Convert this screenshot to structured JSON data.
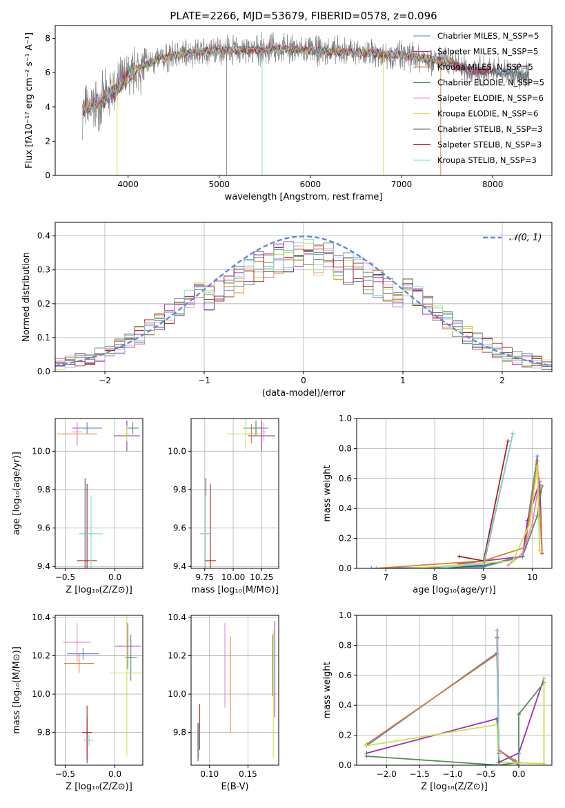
{
  "figure": {
    "title": "PLATE=2266, MJD=53679, FIBERID=0578, z=0.096"
  },
  "colors": {
    "Chabrier MILES": "#5b7fd6",
    "Salpeter MILES": "#9a2fb5",
    "Kroupa MILES": "#e07a2c",
    "Chabrier ELODIE": "#5a8a5a",
    "Salpeter ELODIE": "#ee82c8",
    "Kroupa ELODIE": "#c8e44a",
    "Chabrier STELIB": "#555555",
    "Salpeter STELIB": "#b01c1c",
    "Kroupa STELIB": "#7fd6d6",
    "data": "#7f7f7f",
    "gauss": "#5b8ad6"
  },
  "chart_data": [
    {
      "id": "spectrum",
      "type": "line",
      "xlabel": "wavelength [Angstrom, rest frame]",
      "ylabel": "Flux [fλ10⁻¹⁷ erg cm⁻² s⁻¹ A⁻¹]",
      "xlim": [
        3200,
        8650
      ],
      "ylim": [
        0,
        8.75
      ],
      "xticks": [
        4000,
        5000,
        6000,
        7000,
        8000
      ],
      "yticks": [
        0,
        2,
        4,
        6,
        8
      ],
      "grid": false,
      "legend_position": "right",
      "legend": [
        "Chabrier MILES, N_SSP=5",
        "Salpeter MILES, N_SSP=5",
        "Kroupa MILES, N_SSP=5",
        "Chabrier ELODIE, N_SSP=5",
        "Salpeter ELODIE, N_SSP=6",
        "Kroupa ELODIE, N_SSP=6",
        "Chabrier STELIB, N_SSP=3",
        "Salpeter STELIB, N_SSP=3",
        "Kroupa STELIB, N_SSP=3"
      ],
      "continuum": {
        "x": [
          3500,
          3600,
          3700,
          3800,
          3900,
          4000,
          4100,
          4300,
          4500,
          4700,
          5000,
          5300,
          5600,
          6000,
          6400,
          6800,
          7000,
          7200,
          7400,
          7600,
          7800,
          8000,
          8200,
          8400
        ],
        "y": [
          3.8,
          4.0,
          4.3,
          4.8,
          5.2,
          5.8,
          6.2,
          6.7,
          7.0,
          7.2,
          7.3,
          7.3,
          7.4,
          7.3,
          7.2,
          7.1,
          7.0,
          6.9,
          6.7,
          6.4,
          6.1,
          6.1,
          6.0,
          5.8
        ]
      }
    },
    {
      "id": "residuals",
      "type": "bar",
      "xlabel": "(data-model)/error",
      "ylabel": "Normed distribution",
      "xlim": [
        -2.5,
        2.5
      ],
      "ylim": [
        0,
        0.44
      ],
      "xticks": [
        -2,
        -1,
        0,
        1,
        2
      ],
      "yticks": [
        0.0,
        0.1,
        0.2,
        0.3,
        0.4
      ],
      "grid": true,
      "legend": [
        "𝒩(0, 1)"
      ],
      "legend_position": "upper-right",
      "bin_width": 0.1
    },
    {
      "id": "age_vs_Z",
      "type": "scatter",
      "xlabel": "Z [log₁₀(Z/Z⊙)]",
      "ylabel": "age  [log₁₀(age/yr)]",
      "xlim": [
        -0.6,
        0.28
      ],
      "ylim": [
        9.39,
        10.17
      ],
      "xticks": [
        -0.5,
        0.0
      ],
      "yticks": [
        9.4,
        9.6,
        9.8,
        10.0
      ],
      "grid": true,
      "points": [
        {
          "model": "Chabrier MILES",
          "x": -0.28,
          "y": 10.12,
          "xerr": 0.15,
          "yerr": 0.03
        },
        {
          "model": "Salpeter MILES",
          "x": 0.12,
          "y": 10.08,
          "xerr": 0.13,
          "yerr": 0.08
        },
        {
          "model": "Kroupa MILES",
          "x": -0.38,
          "y": 10.09,
          "xerr": 0.2,
          "yerr": 0.06
        },
        {
          "model": "Chabrier ELODIE",
          "x": 0.18,
          "y": 10.12,
          "xerr": 0.06,
          "yerr": 0.03
        },
        {
          "model": "Salpeter ELODIE",
          "x": -0.38,
          "y": 10.1,
          "xerr": 0.05,
          "yerr": 0.05
        },
        {
          "model": "Kroupa ELODIE",
          "x": 0.12,
          "y": 10.09,
          "xerr": 0.03,
          "yerr": 0.04
        },
        {
          "model": "Chabrier STELIB",
          "x": -0.3,
          "y": 9.57,
          "xerr": 0.05,
          "yerr": 0.29
        },
        {
          "model": "Salpeter STELIB",
          "x": -0.28,
          "y": 9.43,
          "xerr": 0.1,
          "yerr": 0.4
        },
        {
          "model": "Kroupa STELIB",
          "x": -0.24,
          "y": 9.57,
          "xerr": 0.12,
          "yerr": 0.2
        }
      ]
    },
    {
      "id": "age_vs_mass",
      "type": "scatter",
      "xlabel": "mass [log₁₀(M/M⊙)]",
      "ylabel": "",
      "xlim": [
        9.63,
        10.4
      ],
      "ylim": [
        9.39,
        10.17
      ],
      "xticks": [
        9.75,
        10.0,
        10.25
      ],
      "yticks": [
        9.4,
        9.6,
        9.8,
        10.0
      ],
      "grid": true,
      "points": [
        {
          "model": "Chabrier MILES",
          "x": 10.2,
          "y": 10.12,
          "xerr": 0.11,
          "yerr": 0.03
        },
        {
          "model": "Salpeter MILES",
          "x": 10.25,
          "y": 10.08,
          "xerr": 0.12,
          "yerr": 0.08
        },
        {
          "model": "Kroupa MILES",
          "x": 10.16,
          "y": 10.09,
          "xerr": 0.06,
          "yerr": 0.05
        },
        {
          "model": "Chabrier ELODIE",
          "x": 10.2,
          "y": 10.12,
          "xerr": 0.04,
          "yerr": 0.04
        },
        {
          "model": "Salpeter ELODIE",
          "x": 10.27,
          "y": 10.1,
          "xerr": 0.02,
          "yerr": 0.05
        },
        {
          "model": "Kroupa ELODIE",
          "x": 10.11,
          "y": 10.09,
          "xerr": 0.17,
          "yerr": 0.08
        },
        {
          "model": "Chabrier STELIB",
          "x": 9.76,
          "y": 9.57,
          "xerr": 0.05,
          "yerr": 0.29
        },
        {
          "model": "Salpeter STELIB",
          "x": 9.8,
          "y": 9.43,
          "xerr": 0.05,
          "yerr": 0.4
        },
        {
          "model": "Kroupa STELIB",
          "x": 9.76,
          "y": 9.57,
          "xerr": 0.05,
          "yerr": 0.2
        }
      ]
    },
    {
      "id": "weight_vs_age",
      "type": "line",
      "xlabel": "age  [log₁₀(age/yr)]",
      "ylabel": "mass weight",
      "xlim": [
        6.4,
        10.4
      ],
      "ylim": [
        0,
        1.0
      ],
      "xticks": [
        7,
        8,
        9,
        10
      ],
      "yticks": [
        0.0,
        0.2,
        0.4,
        0.6,
        0.8,
        1.0
      ],
      "grid": true,
      "series": [
        {
          "model": "Chabrier MILES",
          "x": [
            6.7,
            9.0,
            9.8,
            10.1,
            10.15
          ],
          "y": [
            0.0,
            0.01,
            0.08,
            0.75,
            0.12
          ]
        },
        {
          "model": "Salpeter MILES",
          "x": [
            8.5,
            9.8,
            9.9,
            10.15,
            10.2
          ],
          "y": [
            0.03,
            0.08,
            0.32,
            0.58,
            0.1
          ]
        },
        {
          "model": "Kroupa MILES",
          "x": [
            6.8,
            9.0,
            9.85,
            10.1,
            10.2
          ],
          "y": [
            0.0,
            0.05,
            0.14,
            0.72,
            0.1
          ]
        },
        {
          "model": "Chabrier ELODIE",
          "x": [
            9.0,
            9.8,
            10.1,
            10.2
          ],
          "y": [
            0.02,
            0.08,
            0.35,
            0.55
          ]
        },
        {
          "model": "Salpeter ELODIE",
          "x": [
            9.5,
            9.8,
            10.0,
            10.15
          ],
          "y": [
            0.02,
            0.1,
            0.3,
            0.6
          ]
        },
        {
          "model": "Kroupa ELODIE",
          "x": [
            7.5,
            9.6,
            9.95,
            10.1,
            10.15
          ],
          "y": [
            0.0,
            0.05,
            0.3,
            0.68,
            0.12
          ]
        },
        {
          "model": "Chabrier STELIB",
          "x": [
            8.0,
            9.0,
            9.6
          ],
          "y": [
            0.0,
            0.02,
            0.9
          ]
        },
        {
          "model": "Salpeter STELIB",
          "x": [
            8.5,
            9.0,
            9.5
          ],
          "y": [
            0.08,
            0.05,
            0.85
          ]
        },
        {
          "model": "Kroupa STELIB",
          "x": [
            8.0,
            9.0,
            9.6
          ],
          "y": [
            0.0,
            0.03,
            0.9
          ]
        }
      ]
    },
    {
      "id": "mass_vs_Z",
      "type": "scatter",
      "xlabel": "Z [log₁₀(Z/Z⊙)]",
      "ylabel": "mass [log₁₀(M/M⊙)]",
      "xlim": [
        -0.6,
        0.28
      ],
      "ylim": [
        9.63,
        10.41
      ],
      "xticks": [
        -0.5,
        0.0
      ],
      "yticks": [
        9.8,
        10.0,
        10.2,
        10.4
      ],
      "grid": true,
      "points": [
        {
          "model": "Chabrier MILES",
          "x": -0.32,
          "y": 10.21,
          "xerr": 0.16,
          "yerr": 0.03
        },
        {
          "model": "Salpeter MILES",
          "x": 0.13,
          "y": 10.25,
          "xerr": 0.13,
          "yerr": 0.12
        },
        {
          "model": "Kroupa MILES",
          "x": -0.36,
          "y": 10.16,
          "xerr": 0.15,
          "yerr": 0.05
        },
        {
          "model": "Chabrier ELODIE",
          "x": 0.16,
          "y": 10.19,
          "xerr": 0.06,
          "yerr": 0.12
        },
        {
          "model": "Salpeter ELODIE",
          "x": -0.38,
          "y": 10.27,
          "xerr": 0.14,
          "yerr": 0.1
        },
        {
          "model": "Kroupa ELODIE",
          "x": 0.12,
          "y": 10.11,
          "xerr": 0.17,
          "yerr": 0.43
        },
        {
          "model": "Chabrier STELIB",
          "x": -0.28,
          "y": 9.76,
          "xerr": 0.03,
          "yerr": 0.12
        },
        {
          "model": "Salpeter STELIB",
          "x": -0.28,
          "y": 9.8,
          "xerr": 0.05,
          "yerr": 0.14
        },
        {
          "model": "Kroupa STELIB",
          "x": -0.26,
          "y": 9.76,
          "xerr": 0.05,
          "yerr": 0.03
        }
      ]
    },
    {
      "id": "mass_vs_ebv",
      "type": "scatter",
      "xlabel": "E(B-V)",
      "ylabel": "",
      "xlim": [
        0.076,
        0.19
      ],
      "ylim": [
        9.63,
        10.41
      ],
      "xticks": [
        0.1,
        0.15
      ],
      "yticks": [
        9.8,
        10.0,
        10.2,
        10.4
      ],
      "grid": true,
      "points": [
        {
          "model": "Salpeter ELODIE",
          "x": 0.12,
          "y": 10.15,
          "yerr": 0.22
        },
        {
          "model": "Kroupa MILES",
          "x": 0.127,
          "y": 10.05,
          "yerr": 0.25
        },
        {
          "model": "Chabrier ELODIE",
          "x": 0.182,
          "y": 10.15,
          "yerr": 0.16
        },
        {
          "model": "Kroupa ELODIE",
          "x": 0.183,
          "y": 10.0,
          "yerr": 0.33
        },
        {
          "model": "Salpeter MILES",
          "x": 0.185,
          "y": 10.13,
          "yerr": 0.25
        },
        {
          "model": "Salpeter STELIB",
          "x": 0.087,
          "y": 9.83,
          "yerr": 0.12
        },
        {
          "model": "Chabrier STELIB",
          "x": 0.085,
          "y": 9.75,
          "yerr": 0.1
        },
        {
          "model": "Kroupa STELIB",
          "x": 0.086,
          "y": 9.76,
          "yerr": 0.09
        }
      ]
    },
    {
      "id": "weight_vs_Z",
      "type": "line",
      "xlabel": "Z [log₁₀(Z/Z⊙)]",
      "ylabel": "mass weight",
      "xlim": [
        -2.45,
        0.5
      ],
      "ylim": [
        0,
        1.0
      ],
      "xticks": [
        -2.0,
        -1.5,
        -1.0,
        -0.5,
        0.0
      ],
      "yticks": [
        0.0,
        0.2,
        0.4,
        0.6,
        0.8,
        1.0
      ],
      "grid": true,
      "series": [
        {
          "model": "Chabrier MILES",
          "x": [
            -2.3,
            -0.33,
            -0.3,
            0.0
          ],
          "y": [
            0.13,
            0.75,
            0.1,
            0.0
          ]
        },
        {
          "model": "Salpeter MILES",
          "x": [
            -2.3,
            -0.33,
            -0.3,
            0.0,
            0.38
          ],
          "y": [
            0.08,
            0.31,
            0.02,
            0.08,
            0.58
          ]
        },
        {
          "model": "Kroupa MILES",
          "x": [
            -2.3,
            -0.33,
            -0.3,
            -0.05,
            0.0
          ],
          "y": [
            0.14,
            0.74,
            0.1,
            0.03,
            0.0
          ]
        },
        {
          "model": "Chabrier ELODIE",
          "x": [
            -2.3,
            -0.3,
            0.0,
            0.0,
            0.38
          ],
          "y": [
            0.06,
            0.0,
            0.02,
            0.34,
            0.55
          ]
        },
        {
          "model": "Salpeter ELODIE",
          "x": [
            -0.32,
            -0.3
          ],
          "y": [
            0.9,
            0.0
          ]
        },
        {
          "model": "Kroupa ELODIE",
          "x": [
            -2.3,
            -0.33,
            -0.3,
            0.38,
            0.38
          ],
          "y": [
            0.13,
            0.27,
            0.02,
            0.01,
            0.58
          ]
        },
        {
          "model": "Chabrier STELIB",
          "x": [
            -0.33,
            -0.3
          ],
          "y": [
            0.9,
            0.02
          ]
        },
        {
          "model": "Salpeter STELIB",
          "x": [
            -0.33,
            -0.3
          ],
          "y": [
            0.85,
            0.08
          ]
        },
        {
          "model": "Kroupa STELIB",
          "x": [
            -0.33,
            -0.3
          ],
          "y": [
            0.9,
            0.05
          ]
        }
      ]
    }
  ]
}
